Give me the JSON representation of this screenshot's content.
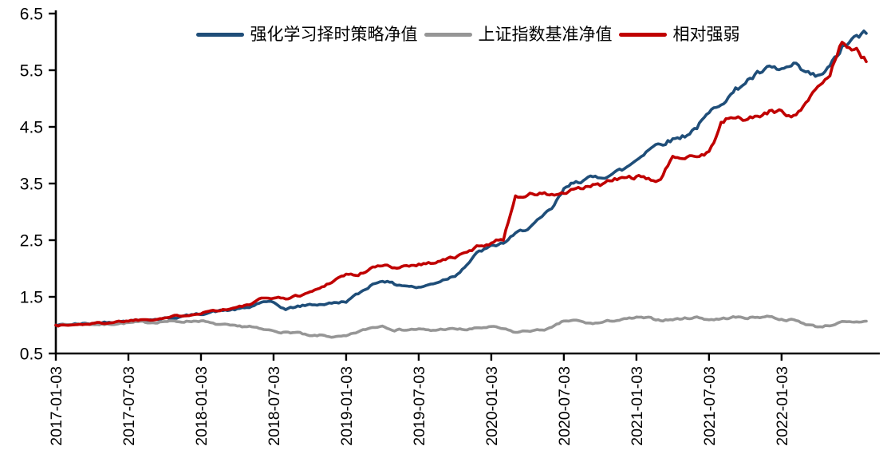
{
  "chart_data": {
    "type": "line",
    "title": "",
    "xlabel": "",
    "ylabel": "",
    "grid": false,
    "legend_position": "top-center",
    "background_color": "#ffffff",
    "axis_color": "#000000",
    "ylim": [
      0.5,
      6.5
    ],
    "y_ticks": [
      "6.5",
      "5.5",
      "4.5",
      "3.5",
      "2.5",
      "1.5",
      "0.5"
    ],
    "y_tick_values": [
      6.5,
      5.5,
      4.5,
      3.5,
      2.5,
      1.5,
      0.5
    ],
    "x_start_month": "2017-01",
    "x_sampling": "monthly",
    "x_tick_labels": [
      "2017-01-03",
      "2017-07-03",
      "2018-01-03",
      "2018-07-03",
      "2019-01-03",
      "2019-07-03",
      "2020-01-03",
      "2020-07-03",
      "2021-01-03",
      "2021-07-03",
      "2022-01-03"
    ],
    "x_tick_month_indices": [
      0,
      6,
      12,
      18,
      24,
      30,
      36,
      42,
      48,
      54,
      60
    ],
    "series": [
      {
        "name": "强化学习择时策略净值",
        "color": "#1F4E79",
        "values": [
          1.0,
          1.01,
          1.02,
          1.03,
          1.05,
          1.06,
          1.08,
          1.09,
          1.1,
          1.12,
          1.14,
          1.17,
          1.2,
          1.24,
          1.26,
          1.28,
          1.31,
          1.41,
          1.39,
          1.28,
          1.33,
          1.36,
          1.37,
          1.39,
          1.42,
          1.55,
          1.7,
          1.8,
          1.72,
          1.7,
          1.66,
          1.72,
          1.8,
          1.88,
          2.08,
          2.3,
          2.38,
          2.45,
          2.6,
          2.72,
          2.85,
          3.05,
          3.38,
          3.55,
          3.58,
          3.62,
          3.68,
          3.75,
          3.92,
          4.12,
          4.22,
          4.28,
          4.35,
          4.5,
          4.72,
          4.95,
          5.1,
          5.3,
          5.42,
          5.52,
          5.5,
          5.57,
          5.44,
          5.37,
          5.55,
          5.89,
          6.05,
          6.15
        ]
      },
      {
        "name": "上证指数基准净值",
        "color": "#969696",
        "values": [
          1.0,
          1.01,
          1.02,
          1.02,
          1.01,
          1.03,
          1.04,
          1.05,
          1.05,
          1.07,
          1.06,
          1.07,
          1.08,
          1.02,
          1.0,
          0.97,
          0.98,
          0.92,
          0.9,
          0.87,
          0.87,
          0.8,
          0.82,
          0.79,
          0.8,
          0.88,
          0.95,
          0.99,
          0.92,
          0.92,
          0.93,
          0.9,
          0.93,
          0.93,
          0.92,
          0.95,
          0.97,
          0.93,
          0.87,
          0.9,
          0.91,
          0.95,
          1.07,
          1.08,
          1.03,
          1.04,
          1.08,
          1.1,
          1.13,
          1.12,
          1.09,
          1.1,
          1.12,
          1.14,
          1.1,
          1.11,
          1.14,
          1.13,
          1.14,
          1.16,
          1.1,
          1.09,
          1.02,
          0.97,
          1.0,
          1.05,
          1.04,
          1.07
        ]
      },
      {
        "name": "相对强弱",
        "color": "#C00000",
        "values": [
          1.0,
          1.0,
          1.01,
          1.03,
          1.04,
          1.06,
          1.08,
          1.1,
          1.11,
          1.13,
          1.16,
          1.19,
          1.22,
          1.26,
          1.28,
          1.31,
          1.36,
          1.46,
          1.49,
          1.47,
          1.52,
          1.58,
          1.67,
          1.8,
          1.9,
          1.88,
          2.0,
          2.05,
          2.02,
          2.05,
          2.08,
          2.1,
          2.15,
          2.2,
          2.28,
          2.4,
          2.46,
          2.52,
          3.28,
          3.3,
          3.32,
          3.3,
          3.32,
          3.38,
          3.44,
          3.48,
          3.55,
          3.6,
          3.62,
          3.55,
          3.58,
          3.95,
          4.0,
          4.0,
          4.05,
          4.55,
          4.68,
          4.62,
          4.7,
          4.75,
          4.78,
          4.7,
          4.95,
          5.15,
          5.45,
          6.0,
          5.92,
          5.65
        ]
      }
    ]
  }
}
